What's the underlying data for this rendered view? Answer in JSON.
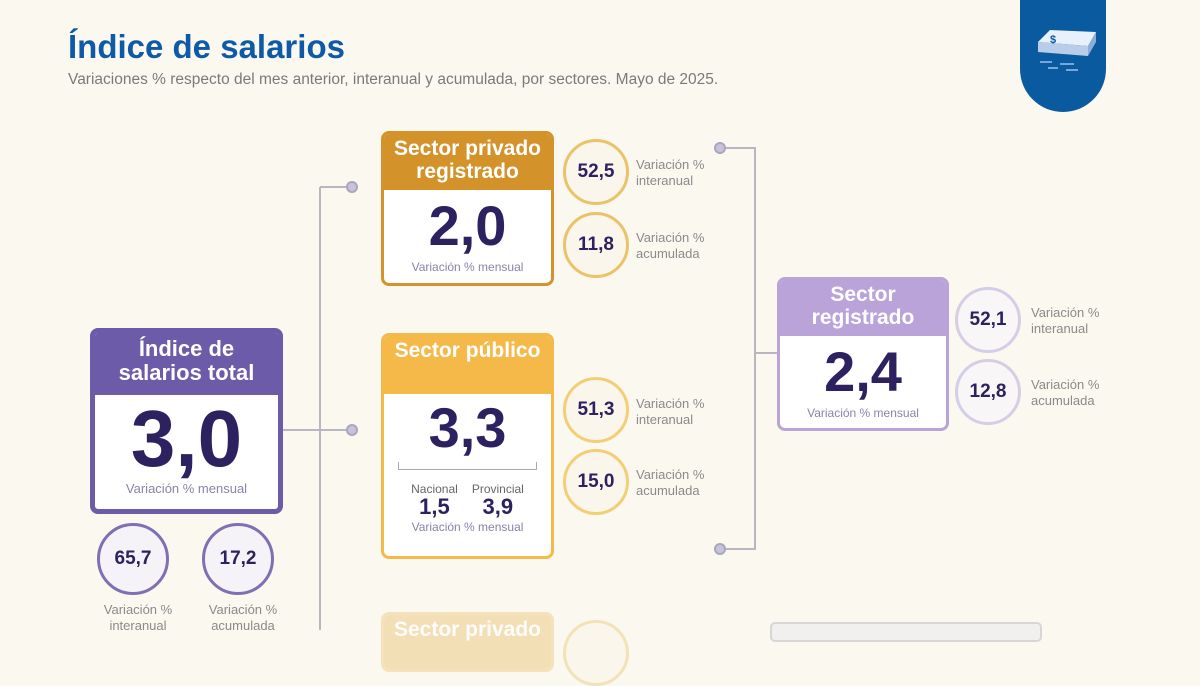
{
  "header": {
    "title": "Índice de salarios",
    "subtitle": "Variaciones % respecto del mes anterior, interanual y acumulada, por sectores. Mayo de 2025.",
    "badge_icon": "money-stack-icon"
  },
  "colors": {
    "title": "#0f5aa6",
    "total": "#6b5ba8",
    "privado": "#d4922a",
    "publico": "#f5b94a",
    "registrado": "#b9a3d8"
  },
  "total": {
    "title": "Índice de salarios total",
    "value": "3,0",
    "caption": "Variación % mensual",
    "interanual": "65,7",
    "interanual_label": "Variación % interanual",
    "acumulada": "17,2",
    "acumulada_label": "Variación % acumulada"
  },
  "privado": {
    "title": "Sector privado registrado",
    "value": "2,0",
    "caption": "Variación % mensual",
    "interanual": "52,5",
    "interanual_label": "Variación % interanual",
    "acumulada": "11,8",
    "acumulada_label": "Variación % acumulada"
  },
  "publico": {
    "title": "Sector público",
    "value": "3,3",
    "nacional_label": "Nacional",
    "nacional": "1,5",
    "provincial_label": "Provincial",
    "provincial": "3,9",
    "caption": "Variación % mensual",
    "interanual": "51,3",
    "interanual_label": "Variación % interanual",
    "acumulada": "15,0",
    "acumulada_label": "Variación % acumulada"
  },
  "registrado": {
    "title": "Sector registrado",
    "value": "2,4",
    "caption": "Variación % mensual",
    "interanual": "52,1",
    "interanual_label": "Variación % interanual",
    "acumulada": "12,8",
    "acumulada_label": "Variación % acumulada"
  },
  "privado_no_registrado": {
    "title": "Sector privado"
  }
}
